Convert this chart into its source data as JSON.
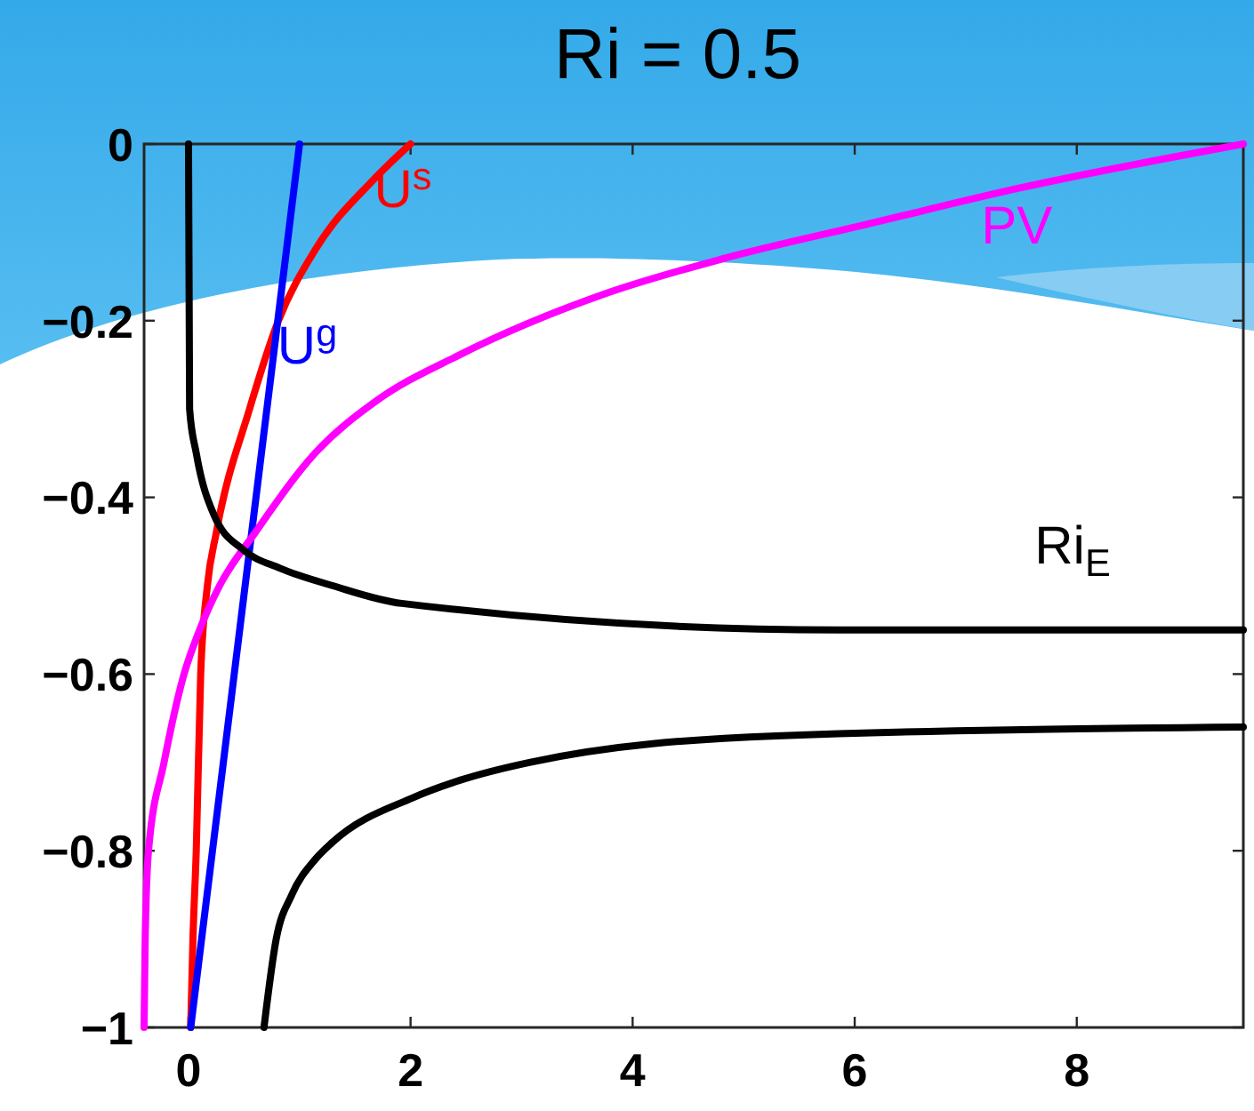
{
  "chart_data": {
    "type": "line",
    "title": "Ri = 0.5",
    "xlim": [
      -0.4,
      9.5
    ],
    "ylim": [
      -1,
      0
    ],
    "xticks": [
      0,
      2,
      4,
      6,
      8
    ],
    "yticks": [
      -1,
      -0.8,
      -0.6,
      -0.4,
      -0.2,
      0
    ],
    "series": [
      {
        "name": "U$^{s}$",
        "color": "#ff0000",
        "x": [
          0.02,
          0.04,
          0.07,
          0.11,
          0.17,
          0.25,
          0.55,
          0.81,
          1.14,
          1.67,
          2
        ],
        "values": [
          -1,
          -0.9,
          -0.8,
          -0.6,
          -0.5,
          -0.44,
          -0.3,
          -0.2,
          -0.12,
          -0.04,
          0
        ]
      },
      {
        "name": "U$^{g}$",
        "color": "#0000ff",
        "x": [
          0.02,
          1
        ],
        "values": [
          -1,
          0
        ]
      },
      {
        "name": "PV",
        "color": "#ff00ff",
        "x": [
          -0.4,
          -0.39,
          -0.36,
          -0.22,
          -0.04,
          0.1,
          0.28,
          0.6,
          1.14,
          1.7,
          2.42,
          3.74,
          4.81,
          6.14,
          7.48,
          9.5
        ],
        "values": [
          -1,
          -0.9,
          -0.8,
          -0.7,
          -0.6,
          -0.55,
          -0.5,
          -0.44,
          -0.35,
          -0.29,
          -0.24,
          -0.17,
          -0.13,
          -0.09,
          -0.05,
          0
        ]
      },
      {
        "name": "Ri$_{E}$",
        "color": "#000000",
        "x": [
          0,
          0.01,
          0.07,
          0.23,
          0.5,
          0.82,
          1.3,
          1.92,
          5.85,
          9.5,
          null,
          0.68,
          0.79,
          0.93,
          1.14,
          1.3,
          2.02,
          2.45,
          3.07,
          5.29,
          9.5
        ],
        "values": [
          0,
          -0.3,
          -0.35,
          -0.42,
          -0.46,
          -0.48,
          -0.5,
          -0.52,
          -0.55,
          -0.55,
          null,
          -1,
          -0.9,
          -0.85,
          -0.81,
          -0.79,
          -0.74,
          -0.72,
          -0.7,
          -0.67,
          -0.66
        ]
      }
    ]
  }
}
